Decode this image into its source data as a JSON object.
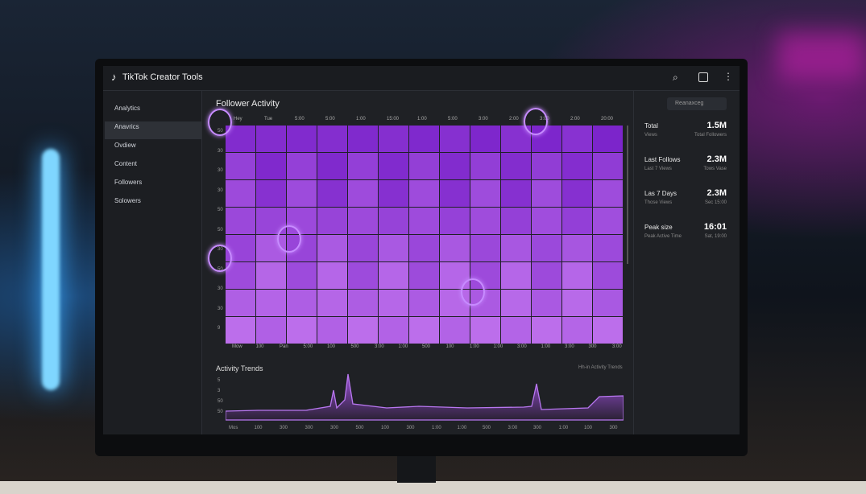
{
  "header": {
    "title": "TikTok Creator Tools"
  },
  "sidebar": {
    "items": [
      "Analytics",
      "Anavrics",
      "Ovdiew",
      "Content",
      "Followers",
      "Solowers"
    ]
  },
  "main": {
    "title": "Follower Activity",
    "search": "Reanaxceg"
  },
  "heatmap": {
    "col_labels": [
      "Hey",
      "Tue",
      "5:00",
      "5:00",
      "1:00",
      "15:00",
      "1:00",
      "5:00",
      "3:00",
      "2:00",
      "3:00",
      "2:00",
      "20:00"
    ],
    "row_labels": [
      "50",
      "30",
      "30",
      "30",
      "50",
      "50",
      "30",
      "50",
      "30",
      "30",
      "9"
    ],
    "bottom_labels": [
      "Mow",
      "100",
      "Pan",
      "5:00",
      "100",
      "500",
      "3:00",
      "1:00",
      "500",
      "100",
      "1:00",
      "1:00",
      "3:00",
      "1:00",
      "3:00",
      "300",
      "3:00"
    ]
  },
  "stats": [
    {
      "label": "Total",
      "value": "1.5M",
      "sub1": "Views",
      "sub2": "Total Followers"
    },
    {
      "label": "Last Follows",
      "value": "2.3M",
      "sub1": "Last 7 Views",
      "sub2": "Tows Vase"
    },
    {
      "label": "Las 7 Days",
      "value": "2.3M",
      "sub1": "Those Views",
      "sub2": "Sec 15:00"
    },
    {
      "label": "Peak size",
      "value": "16:01",
      "sub1": "Peak Active Time",
      "sub2": "Sat, 19:00"
    }
  ],
  "trends": {
    "title": "Activity Trends",
    "legend": "Hh-in Activity Trends",
    "y_labels": [
      "5",
      "3",
      "50",
      "50"
    ],
    "x_labels": [
      "Mos",
      "100",
      "300",
      "300",
      "300",
      "500",
      "100",
      "300",
      "1:00",
      "1:00",
      "500",
      "3:00",
      "300",
      "1:00",
      "100",
      "300"
    ]
  }
}
